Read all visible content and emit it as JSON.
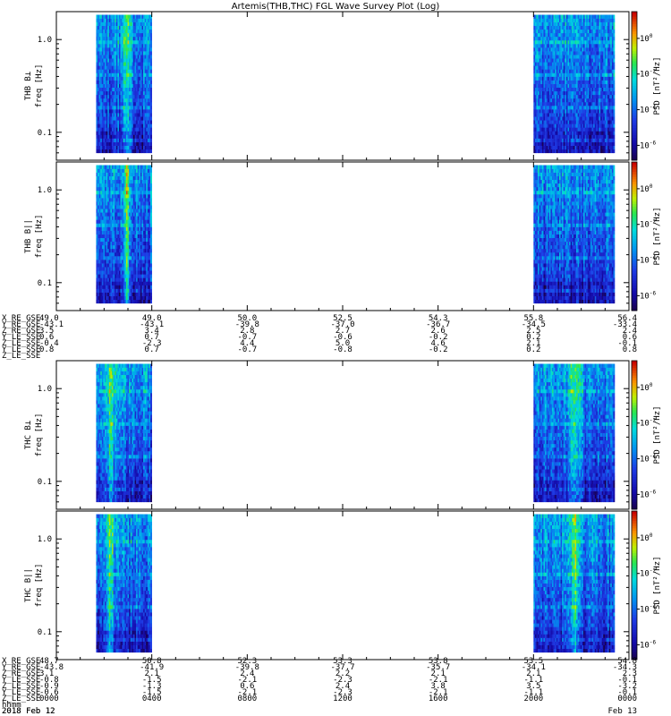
{
  "title": "Artemis(THB,THC) FGL Wave Survey Plot (Log)",
  "chart_data": {
    "type": "heatmap",
    "title": "Artemis(THB,THC) FGL Wave Survey Plot (Log)",
    "y_axis": {
      "scale": "log",
      "ticks": [
        "1.0",
        "0.1"
      ],
      "range_hz": [
        0.05,
        2.0
      ]
    },
    "colorbar": {
      "scale": "log",
      "ticks": [
        "10^0",
        "10^-2",
        "10^-4",
        "10^-6"
      ],
      "colormap": "rainbow"
    },
    "panels": [
      {
        "id": "thb-bl",
        "ylabel": [
          "THB B⊥",
          "freq [Hz]"
        ],
        "colorbar_label": "PSD [nT²/Hz]",
        "active_time_ranges_hhmm": [
          [
            "0000",
            "0400"
          ],
          [
            "2000",
            "2400"
          ]
        ],
        "enhancement_time_hhmm": [
          "0210"
        ]
      },
      {
        "id": "thb-bpar",
        "ylabel": [
          "THB B||",
          "freq [Hz]"
        ],
        "colorbar_label": "PSD [nT²/Hz]",
        "active_time_ranges_hhmm": [
          [
            "0000",
            "0400"
          ],
          [
            "2000",
            "2400"
          ]
        ],
        "enhancement_time_hhmm": [
          "0210"
        ]
      },
      {
        "id": "thc-bl",
        "ylabel": [
          "THC B⊥",
          "freq [Hz]"
        ],
        "colorbar_label": "PSD [nT²/Hz]",
        "active_time_ranges_hhmm": [
          [
            "0000",
            "0400"
          ],
          [
            "2000",
            "2400"
          ]
        ],
        "enhancement_time_hhmm": [
          "0100",
          "2200"
        ]
      },
      {
        "id": "thc-bpar",
        "ylabel": [
          "THC B||",
          "freq [Hz]"
        ],
        "colorbar_label": "PSD [nT²/Hz]",
        "active_time_ranges_hhmm": [
          [
            "0000",
            "0400"
          ],
          [
            "2000",
            "2400"
          ]
        ],
        "enhancement_time_hhmm": [
          "0100",
          "2200"
        ]
      }
    ],
    "x_axis": {
      "hhmm": [
        "0000",
        "0400",
        "0800",
        "1200",
        "1600",
        "2000",
        "0000"
      ],
      "date_labels": [
        "2018  Feb 12",
        "Feb 13"
      ]
    },
    "ephemeris_top": {
      "labels": [
        "X_RE_GSE",
        "Y_RE_GSE",
        "Z_RE_GSE",
        "Y_LE_SSE",
        "Z_LE_SSE",
        "Y_LE_SSE",
        "Z_LE_SSE"
      ],
      "columns": [
        [
          "49.0",
          "-43.1",
          "3.5",
          "0.6",
          "-0.4",
          "0.8"
        ],
        [
          "49.0",
          "-43.1",
          "3.4",
          "0.7",
          "-2.3",
          "0.7"
        ],
        [
          "50.0",
          "-39.8",
          "2.8",
          "-0.7",
          "4.4",
          "-0.7"
        ],
        [
          "52.5",
          "-37.0",
          "2.7",
          "-0.6",
          "5.0",
          "-0.8"
        ],
        [
          "54.3",
          "-36.7",
          "2.6",
          "-0.2",
          "4.6",
          "-0.2"
        ],
        [
          "55.8",
          "-34.5",
          "2.5",
          "0.2",
          "2.1",
          "0.2"
        ],
        [
          "56.4",
          "-33.4",
          "2.4",
          "0.6",
          "-0.1",
          "0.8"
        ]
      ]
    },
    "ephemeris_bottom": {
      "labels": [
        "X_RE_GSE",
        "Y_RE_GSE",
        "Z_RE_GSE",
        "Y_LE_SSE",
        "Z_LE_SSE",
        "Y_LE_SSE",
        "Z_LE_SSE",
        "hhmm",
        "2018 Feb 12"
      ],
      "columns": [
        [
          "48.7",
          "-43.8",
          "3.1",
          "-0.8",
          "-0.9",
          "-0.6",
          "0000"
        ],
        [
          "50.8",
          "-41.9",
          "2.1",
          "-1.5",
          "-1.3",
          "-1.5",
          "0400"
        ],
        [
          "52.3",
          "-39.8",
          "2.4",
          "-2.1",
          "0.6",
          "-2.1",
          "0800"
        ],
        [
          "53.3",
          "-37.7",
          "2.2",
          "-2.3",
          "2.4",
          "-2.3",
          "1200"
        ],
        [
          "53.8",
          "-35.7",
          "2.1",
          "-2.1",
          "3.8",
          "-2.1",
          "1600"
        ],
        [
          "53.5",
          "-34.1",
          "2.1",
          "-1.1",
          "3.5",
          "-1.1",
          "2000"
        ],
        [
          "54.8",
          "-34.3",
          "2.3",
          "-0.1",
          "-3.2",
          "-0.1",
          "0000"
        ]
      ]
    }
  }
}
